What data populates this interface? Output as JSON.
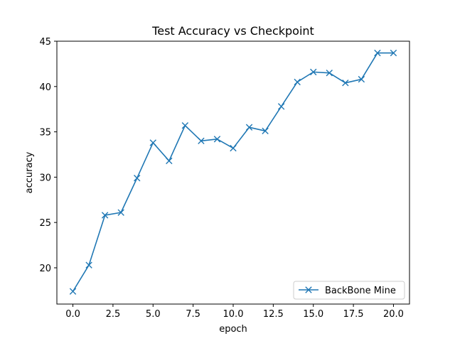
{
  "chart_data": {
    "type": "line",
    "title": "Test Accuracy vs Checkpoint",
    "xlabel": "epoch",
    "ylabel": "accuracy",
    "xlim": [
      -1.0,
      21.0
    ],
    "ylim": [
      16.0,
      45.0
    ],
    "xticks": [
      0.0,
      2.5,
      5.0,
      7.5,
      10.0,
      12.5,
      15.0,
      17.5,
      20.0
    ],
    "xtick_labels": [
      "0.0",
      "2.5",
      "5.0",
      "7.5",
      "10.0",
      "12.5",
      "15.0",
      "17.5",
      "20.0"
    ],
    "yticks": [
      20,
      25,
      30,
      35,
      40,
      45
    ],
    "ytick_labels": [
      "20",
      "25",
      "30",
      "35",
      "40",
      "45"
    ],
    "grid": false,
    "legend_position": "lower-right",
    "series": [
      {
        "name": "BackBone Mine",
        "color": "#1f77b4",
        "marker": "x",
        "x": [
          0,
          1,
          2,
          3,
          4,
          5,
          6,
          7,
          8,
          9,
          10,
          11,
          12,
          13,
          14,
          15,
          16,
          17,
          18,
          19,
          20
        ],
        "y": [
          17.4,
          20.3,
          25.8,
          26.1,
          29.9,
          33.8,
          31.8,
          35.7,
          34.0,
          34.2,
          33.2,
          35.5,
          35.1,
          37.8,
          40.5,
          41.6,
          41.5,
          40.4,
          40.8,
          43.7,
          43.7
        ]
      }
    ]
  }
}
